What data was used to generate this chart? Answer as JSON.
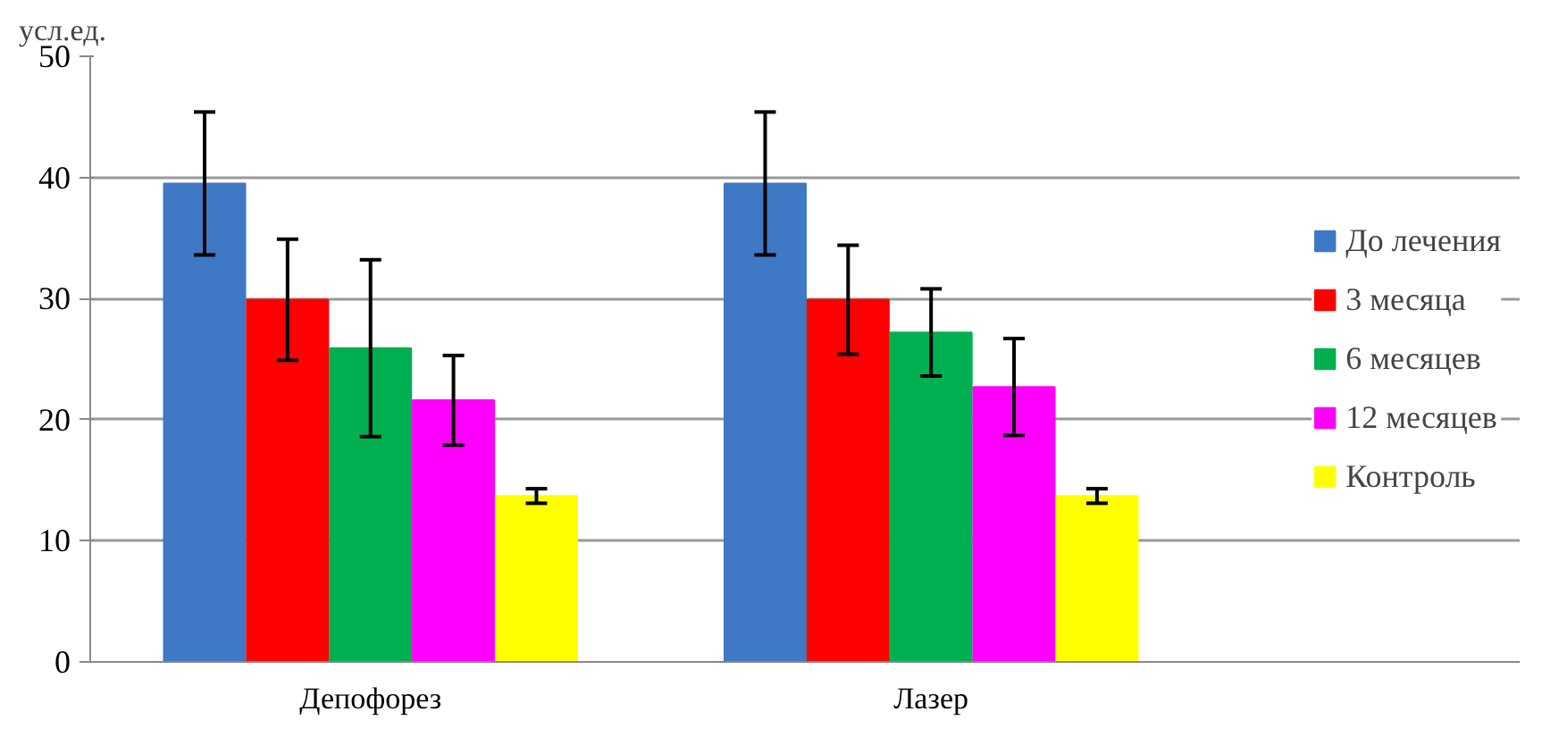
{
  "chart_data": {
    "type": "bar",
    "ylabel": "усл.ед.",
    "categories": [
      "Депофорез",
      "Лазер"
    ],
    "series": [
      {
        "name": "До лечения",
        "color": "#3f78c4",
        "values": [
          39.5,
          39.5
        ],
        "errors": [
          5.9,
          5.9
        ]
      },
      {
        "name": "3 месяца",
        "color": "#ff0000",
        "values": [
          29.9,
          29.9
        ],
        "errors": [
          5.0,
          4.5
        ]
      },
      {
        "name": "6 месяцев",
        "color": "#00b050",
        "values": [
          25.9,
          27.2
        ],
        "errors": [
          7.3,
          3.6
        ]
      },
      {
        "name": "12 месяцев",
        "color": "#ff00ff",
        "values": [
          21.6,
          22.7
        ],
        "errors": [
          3.7,
          4.0
        ]
      },
      {
        "name": "Контроль",
        "color": "#ffff00",
        "values": [
          13.7,
          13.7
        ],
        "errors": [
          0.6,
          0.6
        ]
      }
    ],
    "ylim": [
      0,
      50
    ],
    "yticks": [
      0,
      10,
      20,
      30,
      40,
      50
    ],
    "grid": "y",
    "legend": "right"
  }
}
